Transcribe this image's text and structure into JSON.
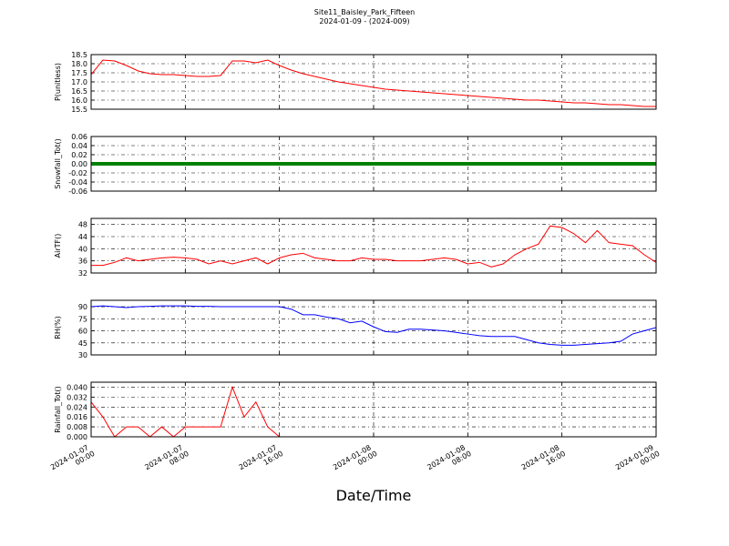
{
  "title": "Site11_Baisley_Park_Fifteen",
  "subtitle": "2024-01-09 - (2024-009)",
  "x_axis": {
    "xlabel": "Date/Time",
    "xlim": [
      "2024-01-07 00:00",
      "2024-01-09 00:00"
    ],
    "xticks": [
      "2024-01-07 00:00",
      "2024-01-07 08:00",
      "2024-01-07 16:00",
      "2024-01-08 00:00",
      "2024-01-08 08:00",
      "2024-01-08 16:00",
      "2024-01-09 00:00"
    ],
    "x": [
      "2024-01-07 00:00",
      "2024-01-07 01:00",
      "2024-01-07 02:00",
      "2024-01-07 03:00",
      "2024-01-07 04:00",
      "2024-01-07 05:00",
      "2024-01-07 06:00",
      "2024-01-07 07:00",
      "2024-01-07 08:00",
      "2024-01-07 09:00",
      "2024-01-07 10:00",
      "2024-01-07 11:00",
      "2024-01-07 12:00",
      "2024-01-07 13:00",
      "2024-01-07 14:00",
      "2024-01-07 15:00",
      "2024-01-07 16:00",
      "2024-01-07 17:00",
      "2024-01-07 18:00",
      "2024-01-07 19:00",
      "2024-01-07 20:00",
      "2024-01-07 21:00",
      "2024-01-07 22:00",
      "2024-01-07 23:00",
      "2024-01-08 00:00",
      "2024-01-08 01:00",
      "2024-01-08 02:00",
      "2024-01-08 03:00",
      "2024-01-08 04:00",
      "2024-01-08 05:00",
      "2024-01-08 06:00",
      "2024-01-08 07:00",
      "2024-01-08 08:00",
      "2024-01-08 09:00",
      "2024-01-08 10:00",
      "2024-01-08 11:00",
      "2024-01-08 12:00",
      "2024-01-08 13:00",
      "2024-01-08 14:00",
      "2024-01-08 15:00",
      "2024-01-08 16:00",
      "2024-01-08 17:00",
      "2024-01-08 18:00",
      "2024-01-08 19:00",
      "2024-01-08 20:00",
      "2024-01-08 21:00",
      "2024-01-08 22:00",
      "2024-01-08 23:00",
      "2024-01-09 00:00"
    ],
    "grid": true
  },
  "chart_data": [
    {
      "type": "line",
      "ylabel": "P(unitless)",
      "ylim": [
        15.5,
        18.5
      ],
      "yticks": [
        15.5,
        {
          "value": 16,
          "label": "16.0"
        },
        16.5,
        {
          "value": 17,
          "label": "17.0"
        },
        17.5,
        {
          "value": 18,
          "label": "18.0"
        },
        18.5
      ],
      "series": [
        {
          "color": "#ff0000",
          "linewidth": 1,
          "values": [
            17.4,
            18.2,
            18.15,
            17.9,
            17.6,
            17.45,
            17.4,
            17.4,
            17.35,
            17.3,
            17.3,
            17.35,
            18.15,
            18.15,
            18.05,
            18.2,
            17.9,
            17.65,
            17.45,
            17.3,
            17.15,
            17.0,
            16.9,
            16.8,
            16.7,
            16.6,
            16.55,
            16.5,
            16.45,
            16.4,
            16.35,
            16.3,
            16.25,
            16.2,
            16.15,
            16.1,
            16.05,
            16.0,
            16.0,
            15.95,
            15.9,
            15.85,
            15.85,
            15.8,
            15.75,
            15.75,
            15.7,
            15.65,
            15.65
          ]
        }
      ]
    },
    {
      "type": "line",
      "ylabel": "Snowfall_Tot()",
      "ylim": [
        -0.06,
        0.06
      ],
      "yticks": [
        {
          "value": -0.06,
          "label": "-0.06"
        },
        {
          "value": -0.04,
          "label": "-0.04"
        },
        {
          "value": -0.02,
          "label": "-0.02"
        },
        {
          "value": 0,
          "label": "0.00"
        },
        {
          "value": 0.02,
          "label": "0.02"
        },
        {
          "value": 0.04,
          "label": "0.04"
        },
        {
          "value": 0.06,
          "label": "0.06"
        }
      ],
      "series": [
        {
          "color": "#008000",
          "linewidth": 4,
          "values": [
            0,
            0,
            0,
            0,
            0,
            0,
            0,
            0,
            0,
            0,
            0,
            0,
            0,
            0,
            0,
            0,
            0,
            0,
            0,
            0,
            0,
            0,
            0,
            0,
            0,
            0,
            0,
            0,
            0,
            0,
            0,
            0,
            0,
            0,
            0,
            0,
            0,
            0,
            0,
            0,
            0,
            0,
            0,
            0,
            0,
            0,
            0,
            0,
            0
          ]
        }
      ]
    },
    {
      "type": "line",
      "ylabel": "AirTF()",
      "ylim": [
        32,
        50
      ],
      "yticks": [
        32,
        36,
        40,
        44,
        48
      ],
      "series": [
        {
          "color": "#ff0000",
          "linewidth": 1,
          "values": [
            34.5,
            34.5,
            35.5,
            37,
            36,
            36.5,
            37,
            37.2,
            37,
            36.5,
            35,
            36,
            35,
            36,
            37,
            35,
            37,
            38,
            38.5,
            37,
            36.5,
            36,
            36,
            37,
            36.5,
            36.5,
            36,
            36,
            36,
            36.5,
            37,
            36.5,
            35,
            35.5,
            34,
            35,
            38,
            40,
            41.5,
            47.5,
            47,
            45,
            42,
            46,
            42,
            41.5,
            41,
            38,
            35.5
          ]
        }
      ]
    },
    {
      "type": "line",
      "ylabel": "RH(%)",
      "ylim": [
        30,
        98
      ],
      "yticks": [
        30,
        45,
        60,
        75,
        90
      ],
      "series": [
        {
          "color": "#0000ff",
          "linewidth": 1,
          "values": [
            90,
            91,
            90,
            89,
            90,
            90.5,
            91,
            91,
            91,
            90.5,
            90.5,
            90,
            90,
            90,
            90,
            90,
            90,
            87,
            80,
            80,
            77,
            75,
            70,
            72,
            65,
            59,
            58,
            62,
            62,
            61,
            60,
            58,
            56,
            54,
            53,
            53,
            53,
            49,
            45,
            43,
            42,
            42,
            43,
            44,
            45,
            47,
            56,
            60,
            64
          ]
        }
      ]
    },
    {
      "type": "line",
      "ylabel": "Rainfall_Tot()",
      "ylim": [
        0,
        0.044
      ],
      "yticks": [
        {
          "value": 0,
          "label": "0.000"
        },
        {
          "value": 0.008,
          "label": "0.008"
        },
        {
          "value": 0.016,
          "label": "0.016"
        },
        {
          "value": 0.024,
          "label": "0.024"
        },
        {
          "value": 0.032,
          "label": "0.032"
        },
        {
          "value": 0.04,
          "label": "0.040"
        }
      ],
      "series": [
        {
          "color": "#ff0000",
          "linewidth": 1,
          "values": [
            0.028,
            0.016,
            0,
            0.008,
            0.008,
            0,
            0.008,
            0,
            0.008,
            0.008,
            0.008,
            0.008,
            0.04,
            0.016,
            0.028,
            0.008,
            0,
            0,
            0,
            0,
            0,
            0,
            0,
            0,
            0,
            0,
            0,
            0,
            0,
            0,
            0,
            0,
            0,
            0,
            0,
            0,
            0,
            0,
            0,
            0,
            0,
            0,
            0,
            0,
            0,
            0,
            0,
            0,
            0
          ]
        }
      ]
    }
  ]
}
